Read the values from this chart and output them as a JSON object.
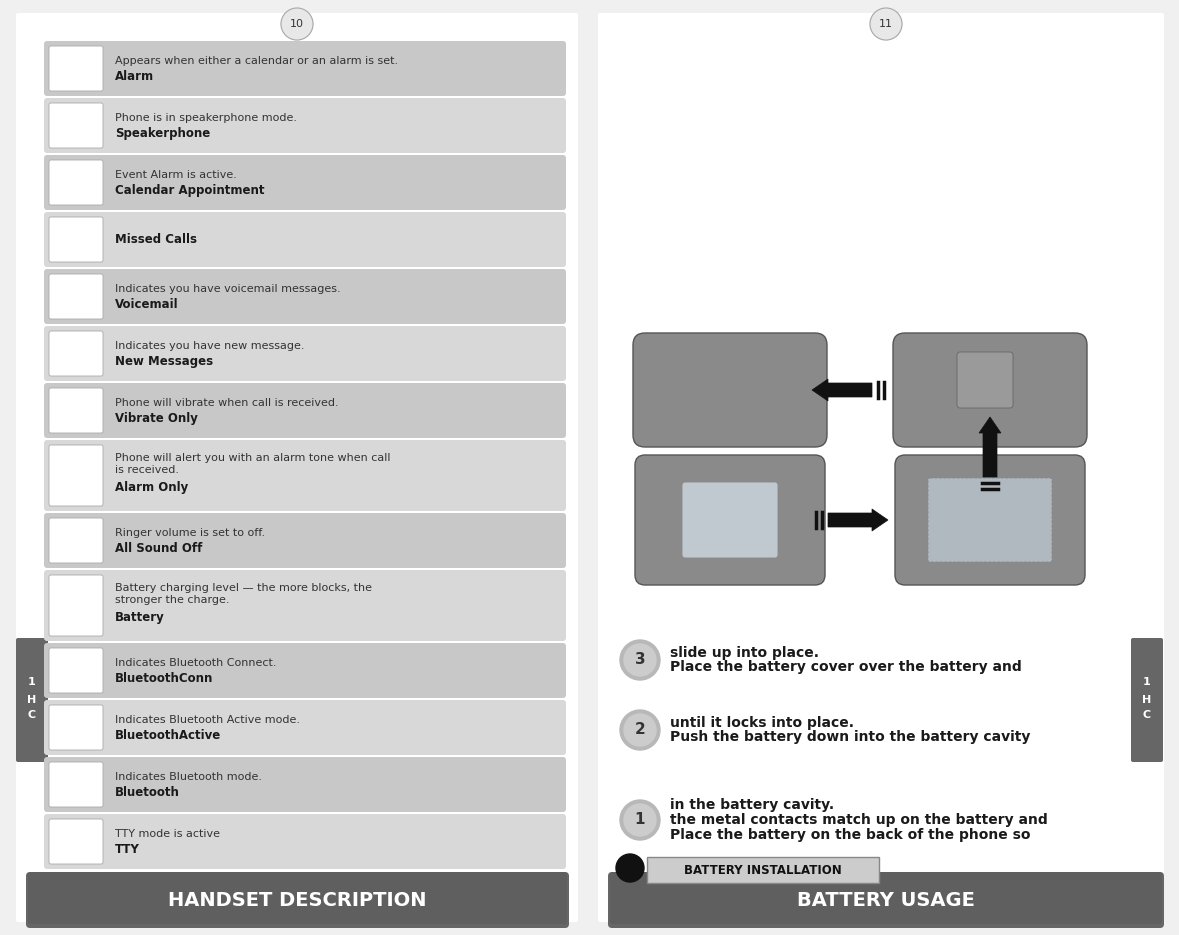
{
  "bg_color": "#f0f0f0",
  "page_bg": "#ffffff",
  "header_bg_top": "#888888",
  "header_bg_bot": "#4a4a4a",
  "header_text_color": "#ffffff",
  "left_title": "HANDSET DESCRIPTION",
  "right_title": "BATTERY USAGE",
  "section_label": "BATTERY INSTALLATION",
  "ch_label_lines": [
    "C",
    "H",
    "1"
  ],
  "left_items": [
    {
      "title": "TTY",
      "desc": "TTY mode is active",
      "two_line": false
    },
    {
      "title": "Bluetooth",
      "desc": "Indicates Bluetooth mode.",
      "two_line": false
    },
    {
      "title": "BluetoothActive",
      "desc": "Indicates Bluetooth Active mode.",
      "two_line": false
    },
    {
      "title": "BluetoothConn",
      "desc": "Indicates Bluetooth Connect.",
      "two_line": false
    },
    {
      "title": "Battery",
      "desc": "Battery charging level — the more blocks, the\nstronger the charge.",
      "two_line": true
    },
    {
      "title": "All Sound Off",
      "desc": "Ringer volume is set to off.",
      "two_line": false
    },
    {
      "title": "Alarm Only",
      "desc": "Phone will alert you with an alarm tone when call\nis received.",
      "two_line": true
    },
    {
      "title": "Vibrate Only",
      "desc": "Phone will vibrate when call is received.",
      "two_line": false
    },
    {
      "title": "New Messages",
      "desc": "Indicates you have new message.",
      "two_line": false
    },
    {
      "title": "Voicemail",
      "desc": "Indicates you have voicemail messages.",
      "two_line": false
    },
    {
      "title": "Missed Calls",
      "desc": "",
      "two_line": false
    },
    {
      "title": "Calendar Appointment",
      "desc": "Event Alarm is active.",
      "two_line": false
    },
    {
      "title": "Speakerphone",
      "desc": "Phone is in speakerphone mode.",
      "two_line": false
    },
    {
      "title": "Alarm",
      "desc": "Appears when either a calendar or an alarm is set.",
      "two_line": false
    }
  ],
  "right_steps": [
    {
      "num": "1",
      "text": "Place the battery on the back of the phone so\nthe metal contacts match up on the battery and\nin the battery cavity.",
      "lines": 3
    },
    {
      "num": "2",
      "text": "Push the battery down into the battery cavity\nuntil it locks into place.",
      "lines": 2
    },
    {
      "num": "3",
      "text": "Place the battery cover over the battery and\nslide up into place.",
      "lines": 2
    }
  ],
  "row_color_light": "#d8d8d8",
  "row_color_dark": "#c8c8c8",
  "icon_bg": "#ffffff",
  "icon_border": "#aaaaaa",
  "title_fontsize": 14,
  "item_title_fontsize": 8.5,
  "item_desc_fontsize": 8.0,
  "step_text_fontsize": 10,
  "page_num_left": "10",
  "page_num_right": "11",
  "ch_tab_color": "#666666",
  "ch_tab_text": "#ffffff"
}
